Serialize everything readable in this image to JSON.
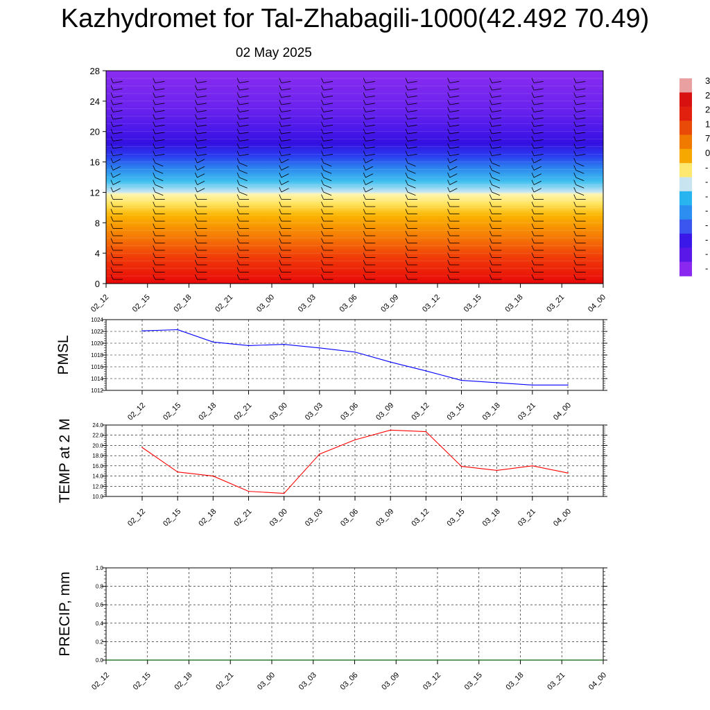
{
  "title": "Kazhydromet for Tal-Zhabagili-1000(42.492 70.49)",
  "subtitle": "02 May 2025",
  "time_labels": [
    "02_12",
    "02_15",
    "02_18",
    "02_21",
    "03_00",
    "03_03",
    "03_06",
    "03_09",
    "03_12",
    "03_15",
    "03_18",
    "03_21",
    "04_00"
  ],
  "colors": {
    "pmsl_line": "#0000ff",
    "temp_line": "#ff0000",
    "precip_line": "#006400",
    "grid": "#000000"
  },
  "chart_data": [
    {
      "type": "heatmap",
      "name": "height-time cross-section",
      "ylim": [
        0,
        28
      ],
      "yticks": [
        0,
        4,
        8,
        12,
        16,
        20,
        24,
        28
      ],
      "xticks": [
        "02_12",
        "02_15",
        "02_18",
        "02_21",
        "03_00",
        "03_03",
        "03_06",
        "03_09",
        "03_12",
        "03_15",
        "03_18",
        "03_21",
        "04_00"
      ],
      "colorbar_labels": [
        "3",
        "2",
        "2",
        "1",
        "7",
        "0",
        "-",
        "-",
        "-",
        "-",
        "-",
        "-",
        "-",
        "-"
      ],
      "colorbar_colors": [
        "#e8a0a0",
        "#d81010",
        "#e22010",
        "#ea4a08",
        "#f07a00",
        "#f7a800",
        "#ffe870",
        "#c8e4f0",
        "#28b4ee",
        "#2c8ef0",
        "#3a56ee",
        "#3a18e8",
        "#5a18e8",
        "#8a28f0"
      ],
      "wind_barbs": true
    },
    {
      "type": "line",
      "ylabel": "PMSL",
      "ylim": [
        1012,
        1024
      ],
      "yticks": [
        "1012",
        "1014",
        "1016",
        "1018",
        "1020",
        "1022",
        "1024"
      ],
      "categories": [
        "02_12",
        "02_15",
        "02_18",
        "02_21",
        "03_00",
        "03_03",
        "03_06",
        "03_09",
        "03_12",
        "03_15",
        "03_18",
        "03_21",
        "04_00"
      ],
      "values": [
        1022.1,
        1022.3,
        1020.2,
        1019.6,
        1019.8,
        1019.2,
        1018.5,
        1016.8,
        1015.3,
        1013.7,
        1013.3,
        1012.9,
        1012.9
      ]
    },
    {
      "type": "line",
      "ylabel": "TEMP at 2 M",
      "ylim": [
        10,
        24
      ],
      "yticks": [
        "10.0",
        "12.0",
        "14.0",
        "16.0",
        "18.0",
        "20.0",
        "22.0",
        "24.0"
      ],
      "categories": [
        "02_12",
        "02_15",
        "02_18",
        "02_21",
        "03_00",
        "03_03",
        "03_06",
        "03_09",
        "03_12",
        "03_15",
        "03_18",
        "03_21",
        "04_00"
      ],
      "values": [
        19.6,
        14.8,
        14.0,
        11.0,
        10.6,
        18.3,
        21.1,
        23.0,
        22.7,
        15.9,
        15.1,
        16.0,
        14.6
      ]
    },
    {
      "type": "line",
      "ylabel": "PRECIP, mm",
      "ylim": [
        0,
        1
      ],
      "yticks": [
        "0.0",
        "0.2",
        "0.4",
        "0.6",
        "0.8",
        "1.0"
      ],
      "categories": [
        "02_12",
        "02_15",
        "02_18",
        "02_21",
        "03_00",
        "03_03",
        "03_06",
        "03_09",
        "03_12",
        "03_15",
        "03_18",
        "03_21",
        "04_00"
      ],
      "values": [
        0,
        0,
        0,
        0,
        0,
        0,
        0,
        0,
        0,
        0,
        0,
        0,
        0
      ]
    }
  ]
}
